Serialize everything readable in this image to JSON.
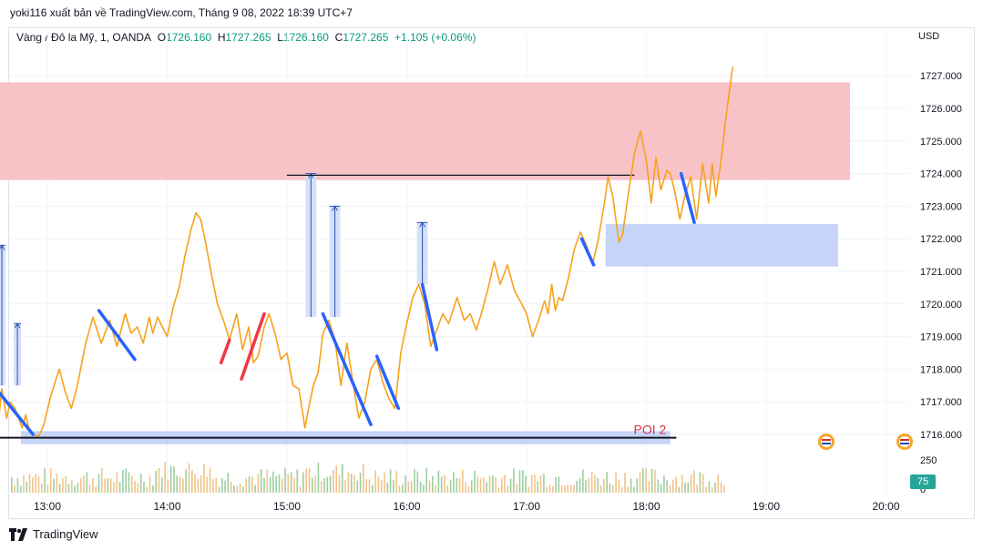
{
  "header": {
    "published": "yoki116 xuất bản về TradingView.com, Tháng 9 08, 2022 18:39 UTC+7"
  },
  "legend": {
    "symbol": "Vàng / Đô la Mỹ, 1, OANDA",
    "o_label": "O",
    "o": "1726.160",
    "h_label": "H",
    "h": "1727.265",
    "l_label": "L",
    "l": "1726.160",
    "c_label": "C",
    "c": "1727.265",
    "change": "+1.105 (+0.06%)"
  },
  "currency": "USD",
  "footer": {
    "brand": "TradingView"
  },
  "volume_badge": "75",
  "colors": {
    "price_line": "#f7a21b",
    "supply_zone": "#f8c0c4",
    "demand_zone": "#c0cff7",
    "down_leg": "#2962ff",
    "up_leg": "#f23645",
    "poi_text": "#e0304a"
  },
  "chart_data": {
    "type": "line",
    "title": "",
    "xlabel": "",
    "ylabel": "",
    "x_ticks": [
      "13:00",
      "14:00",
      "15:00",
      "16:00",
      "17:00",
      "18:00",
      "19:00",
      "20:00"
    ],
    "y_ticks": [
      "1727.000",
      "1726.000",
      "1725.000",
      "1724.000",
      "1723.000",
      "1722.000",
      "1721.000",
      "1720.000",
      "1719.000",
      "1718.000",
      "1717.000",
      "1716.000"
    ],
    "ylim": [
      1715.5,
      1728.3
    ],
    "volume_ticks": [
      "250",
      "0"
    ],
    "series": [
      {
        "values": [
          [
            12.55,
            1716.3
          ],
          [
            12.58,
            1716.0
          ],
          [
            12.62,
            1717.4
          ],
          [
            12.66,
            1716.5
          ],
          [
            12.69,
            1717.0
          ],
          [
            12.73,
            1716.8
          ],
          [
            12.76,
            1716.5
          ],
          [
            12.79,
            1716.2
          ],
          [
            12.82,
            1716.6
          ],
          [
            12.85,
            1716.1
          ],
          [
            12.88,
            1716.0
          ],
          [
            12.93,
            1715.95
          ],
          [
            12.97,
            1716.3
          ],
          [
            13.03,
            1717.2
          ],
          [
            13.1,
            1718.0
          ],
          [
            13.15,
            1717.3
          ],
          [
            13.2,
            1716.8
          ],
          [
            13.25,
            1717.5
          ],
          [
            13.32,
            1718.8
          ],
          [
            13.38,
            1719.6
          ],
          [
            13.45,
            1718.8
          ],
          [
            13.52,
            1719.5
          ],
          [
            13.58,
            1718.7
          ],
          [
            13.65,
            1719.7
          ],
          [
            13.7,
            1719.1
          ],
          [
            13.75,
            1719.3
          ],
          [
            13.8,
            1718.8
          ],
          [
            13.85,
            1719.6
          ],
          [
            13.88,
            1719.1
          ],
          [
            13.92,
            1719.6
          ],
          [
            13.96,
            1719.3
          ],
          [
            14.0,
            1719.0
          ],
          [
            14.05,
            1719.9
          ],
          [
            14.1,
            1720.5
          ],
          [
            14.15,
            1721.5
          ],
          [
            14.2,
            1722.3
          ],
          [
            14.24,
            1722.8
          ],
          [
            14.28,
            1722.6
          ],
          [
            14.32,
            1721.9
          ],
          [
            14.37,
            1720.9
          ],
          [
            14.42,
            1720.0
          ],
          [
            14.47,
            1719.5
          ],
          [
            14.52,
            1718.9
          ],
          [
            14.58,
            1719.7
          ],
          [
            14.63,
            1718.6
          ],
          [
            14.68,
            1719.3
          ],
          [
            14.72,
            1718.2
          ],
          [
            14.76,
            1718.4
          ],
          [
            14.81,
            1719.3
          ],
          [
            14.85,
            1719.7
          ],
          [
            14.9,
            1719.1
          ],
          [
            14.95,
            1718.3
          ],
          [
            15.0,
            1718.5
          ],
          [
            15.05,
            1717.5
          ],
          [
            15.1,
            1717.4
          ],
          [
            15.15,
            1716.2
          ],
          [
            15.18,
            1716.8
          ],
          [
            15.22,
            1717.5
          ],
          [
            15.26,
            1717.9
          ],
          [
            15.3,
            1719.1
          ],
          [
            15.35,
            1719.5
          ],
          [
            15.4,
            1718.9
          ],
          [
            15.45,
            1717.5
          ],
          [
            15.5,
            1718.8
          ],
          [
            15.55,
            1717.6
          ],
          [
            15.6,
            1716.5
          ],
          [
            15.65,
            1717.0
          ],
          [
            15.7,
            1718.0
          ],
          [
            15.75,
            1718.3
          ],
          [
            15.8,
            1717.6
          ],
          [
            15.85,
            1717.1
          ],
          [
            15.9,
            1716.8
          ],
          [
            15.95,
            1718.5
          ],
          [
            16.0,
            1719.4
          ],
          [
            16.05,
            1720.2
          ],
          [
            16.1,
            1720.6
          ],
          [
            16.15,
            1720.0
          ],
          [
            16.2,
            1718.7
          ],
          [
            16.25,
            1719.2
          ],
          [
            16.3,
            1719.7
          ],
          [
            16.35,
            1719.4
          ],
          [
            16.42,
            1720.2
          ],
          [
            16.48,
            1719.5
          ],
          [
            16.53,
            1719.7
          ],
          [
            16.58,
            1719.2
          ],
          [
            16.63,
            1719.8
          ],
          [
            16.68,
            1720.5
          ],
          [
            16.73,
            1721.3
          ],
          [
            16.78,
            1720.6
          ],
          [
            16.84,
            1721.2
          ],
          [
            16.9,
            1720.4
          ],
          [
            16.96,
            1720.0
          ],
          [
            17.0,
            1719.7
          ],
          [
            17.05,
            1719.0
          ],
          [
            17.1,
            1719.5
          ],
          [
            17.15,
            1720.1
          ],
          [
            17.18,
            1719.7
          ],
          [
            17.21,
            1720.6
          ],
          [
            17.24,
            1719.8
          ],
          [
            17.27,
            1720.2
          ],
          [
            17.3,
            1720.1
          ],
          [
            17.35,
            1720.8
          ],
          [
            17.4,
            1721.7
          ],
          [
            17.45,
            1722.2
          ],
          [
            17.5,
            1721.8
          ],
          [
            17.55,
            1721.2
          ],
          [
            17.6,
            1722.0
          ],
          [
            17.65,
            1723.1
          ],
          [
            17.68,
            1723.9
          ],
          [
            17.72,
            1723.3
          ],
          [
            17.77,
            1721.9
          ],
          [
            17.8,
            1722.1
          ],
          [
            17.85,
            1723.4
          ],
          [
            17.9,
            1724.6
          ],
          [
            17.95,
            1725.3
          ],
          [
            18.0,
            1724.4
          ],
          [
            18.04,
            1723.1
          ],
          [
            18.08,
            1724.5
          ],
          [
            18.12,
            1723.5
          ],
          [
            18.17,
            1724.1
          ],
          [
            18.2,
            1724.0
          ],
          [
            18.24,
            1723.4
          ],
          [
            18.28,
            1722.6
          ],
          [
            18.32,
            1723.3
          ],
          [
            18.37,
            1723.9
          ],
          [
            18.42,
            1722.6
          ],
          [
            18.47,
            1724.3
          ],
          [
            18.52,
            1723.1
          ],
          [
            18.55,
            1724.3
          ],
          [
            18.58,
            1723.3
          ],
          [
            18.62,
            1724.3
          ],
          [
            18.66,
            1725.6
          ],
          [
            18.7,
            1726.7
          ],
          [
            18.72,
            1727.27
          ]
        ]
      }
    ],
    "zones": [
      {
        "kind": "supply",
        "x0": 12.55,
        "x1": 19.7,
        "y0": 1723.8,
        "y1": 1726.8
      },
      {
        "kind": "demand",
        "x0": 17.66,
        "x1": 19.6,
        "y0": 1721.15,
        "y1": 1722.45
      },
      {
        "kind": "poi",
        "x0": 12.78,
        "x1": 18.2,
        "y0": 1715.7,
        "y1": 1716.1
      }
    ],
    "h_lines": [
      {
        "y": 1715.9,
        "x0": 12.55,
        "x1": 18.25
      },
      {
        "y": 1723.95,
        "x0": 15.0,
        "x1": 17.9
      }
    ],
    "annotations": [
      {
        "text": "POI 2",
        "x": 18.0,
        "y": 1716.1
      }
    ],
    "measures": [
      {
        "x": 12.62,
        "y0": 1717.5,
        "y1": 1721.8,
        "w": 0.06
      },
      {
        "x": 12.75,
        "y0": 1717.5,
        "y1": 1719.4,
        "w": 0.06
      },
      {
        "x": 15.2,
        "y0": 1719.6,
        "y1": 1724.0,
        "w": 0.09
      },
      {
        "x": 15.4,
        "y0": 1719.6,
        "y1": 1723.0,
        "w": 0.09
      },
      {
        "x": 16.13,
        "y0": 1720.6,
        "y1": 1722.5,
        "w": 0.09
      }
    ],
    "legs": [
      {
        "color": "down",
        "x0": 12.55,
        "y0": 1717.5,
        "x1": 12.88,
        "y1": 1716.0
      },
      {
        "color": "down",
        "x0": 13.43,
        "y0": 1719.8,
        "x1": 13.73,
        "y1": 1718.3
      },
      {
        "color": "up",
        "x0": 14.45,
        "y0": 1718.2,
        "x1": 14.52,
        "y1": 1718.9
      },
      {
        "color": "up",
        "x0": 14.62,
        "y0": 1717.7,
        "x1": 14.81,
        "y1": 1719.7
      },
      {
        "color": "down",
        "x0": 15.3,
        "y0": 1719.7,
        "x1": 15.7,
        "y1": 1716.3
      },
      {
        "color": "down",
        "x0": 15.75,
        "y0": 1718.4,
        "x1": 15.93,
        "y1": 1716.8
      },
      {
        "color": "down",
        "x0": 16.13,
        "y0": 1720.6,
        "x1": 16.25,
        "y1": 1718.6
      },
      {
        "color": "down",
        "x0": 17.46,
        "y0": 1722.0,
        "x1": 17.56,
        "y1": 1721.2
      },
      {
        "color": "down",
        "x0": 18.29,
        "y0": 1724.0,
        "x1": 18.4,
        "y1": 1722.5
      }
    ]
  }
}
